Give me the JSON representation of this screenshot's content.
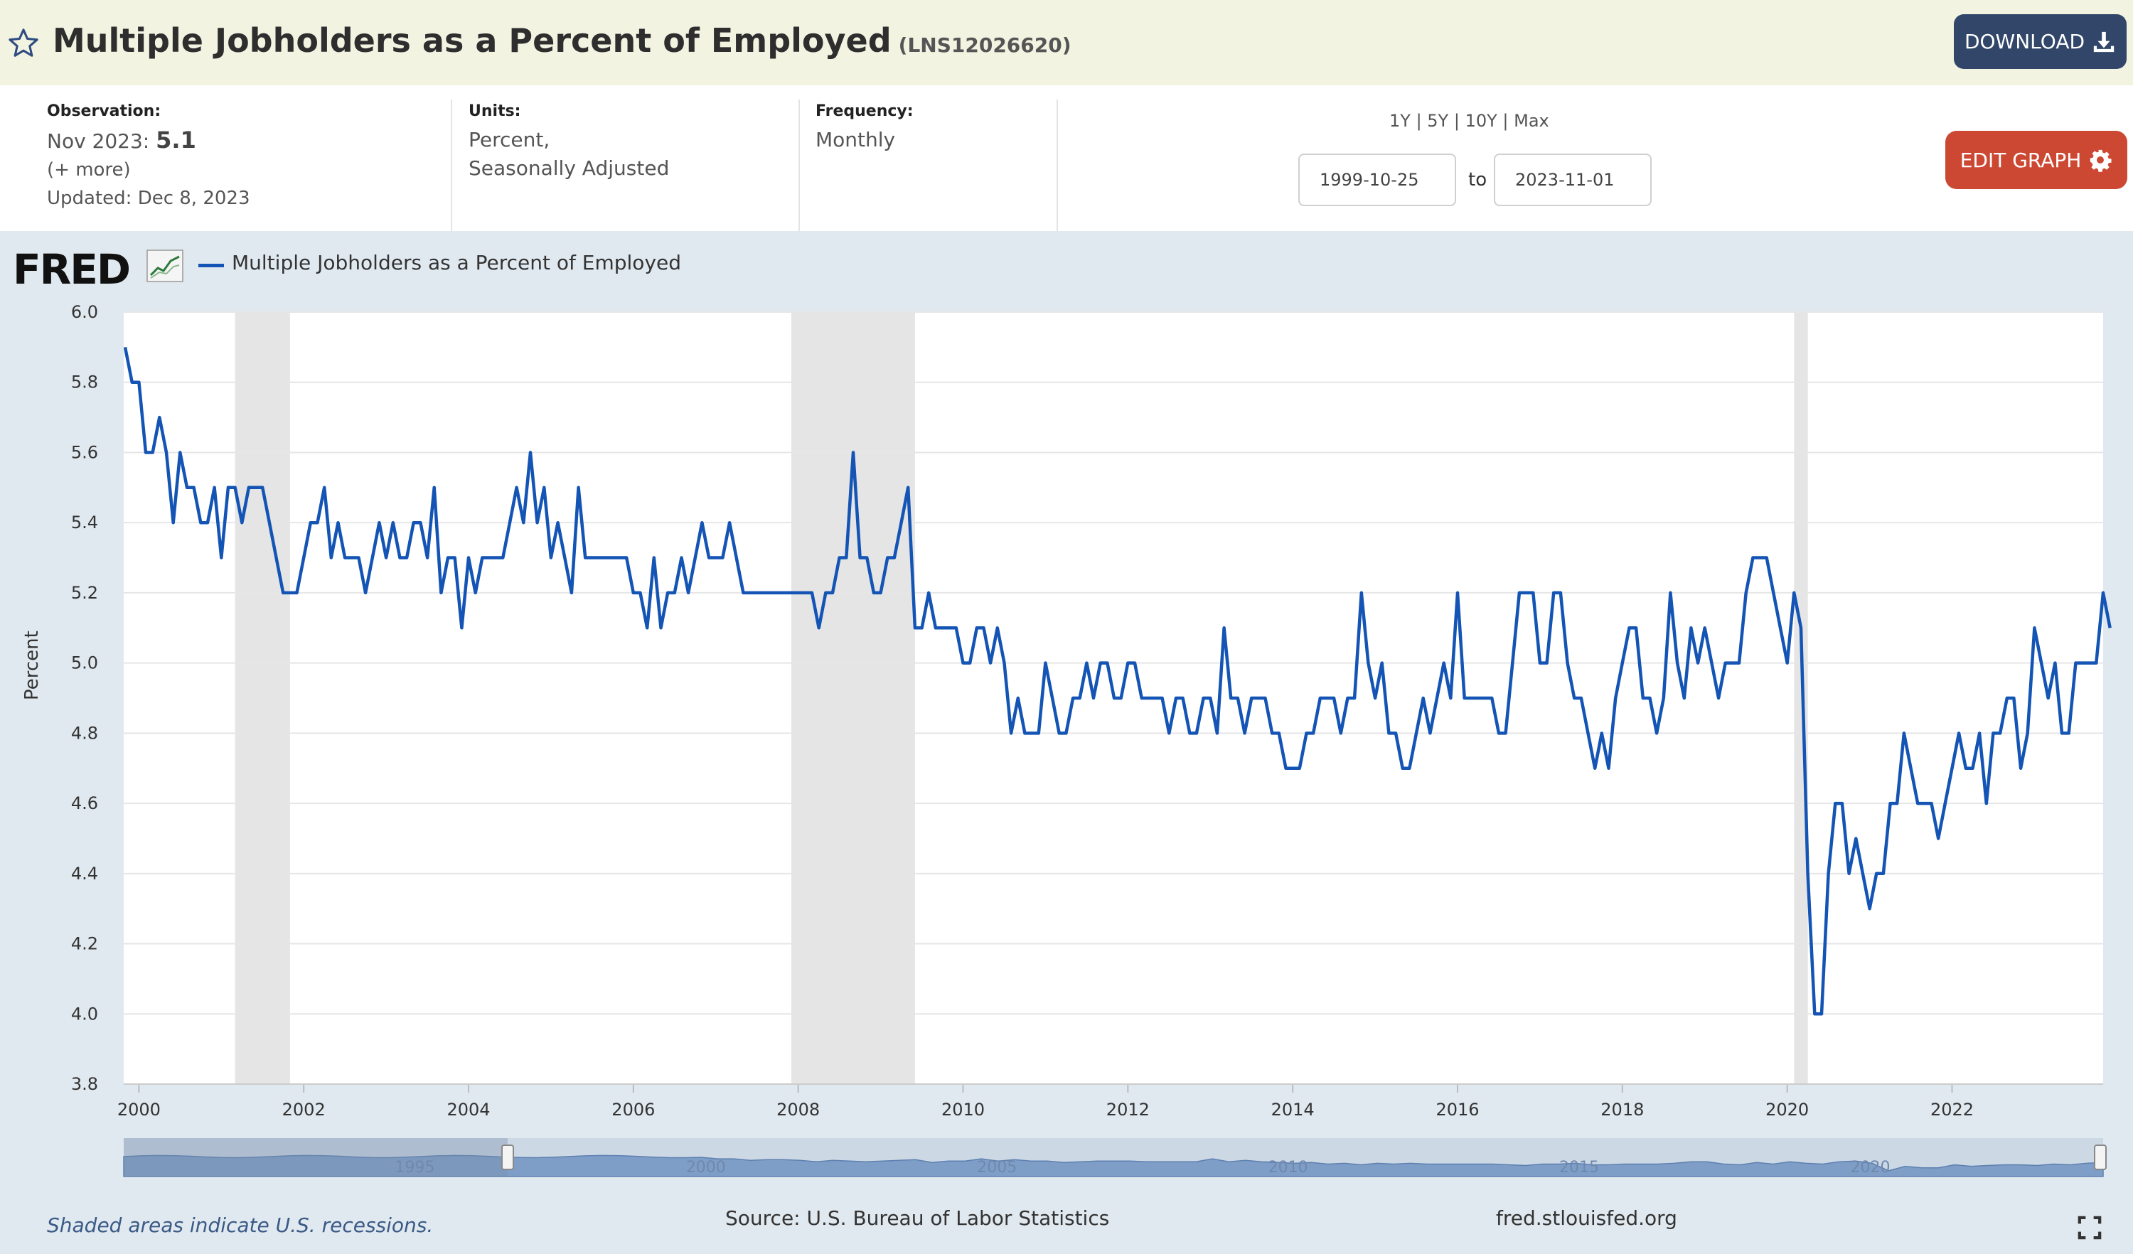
{
  "header": {
    "title": "Multiple Jobholders as a Percent of Employed",
    "series_id": "(LNS12026620)",
    "download_label": "DOWNLOAD"
  },
  "meta": {
    "observation_label": "Observation:",
    "observation_date": "Nov 2023:",
    "observation_value": "5.1",
    "more": "(+ more)",
    "updated": "Updated: Dec 8, 2023",
    "units_label": "Units:",
    "units_line1": "Percent,",
    "units_line2": "Seasonally Adjusted",
    "frequency_label": "Frequency:",
    "frequency_value": "Monthly"
  },
  "range": {
    "links": [
      "1Y",
      "5Y",
      "10Y",
      "Max"
    ],
    "start": "1999-10-25",
    "to": "to",
    "end": "2023-11-01",
    "edit_label": "EDIT GRAPH"
  },
  "footer": {
    "recession_note": "Shaded areas indicate U.S. recessions.",
    "source": "Source: U.S. Bureau of Labor Statistics",
    "site": "fred.stlouisfed.org"
  },
  "colors": {
    "series": "#1354b5",
    "recession": "#e5e5e5",
    "header_bg": "#f2f3e1",
    "download_bg": "#314669",
    "edit_bg": "#cc4832",
    "chart_bg": "#e1e9f0"
  },
  "chart_data": {
    "type": "line",
    "logo": "FRED",
    "xlabel": "",
    "ylabel": "Percent",
    "ylim": [
      3.8,
      6.0
    ],
    "xlim": [
      "1999-10",
      "2023-11"
    ],
    "yticks": [
      "3.8",
      "4.0",
      "4.2",
      "4.4",
      "4.6",
      "4.8",
      "5.0",
      "5.2",
      "5.4",
      "5.6",
      "5.8",
      "6.0"
    ],
    "xticks": [
      "2000",
      "2002",
      "2004",
      "2006",
      "2008",
      "2010",
      "2012",
      "2014",
      "2016",
      "2018",
      "2020",
      "2022"
    ],
    "navigator_labels": [
      "1995",
      "2000",
      "2005",
      "2010",
      "2015",
      "2020"
    ],
    "grid": true,
    "recessions": [
      [
        "2001-03",
        "2001-11"
      ],
      [
        "2007-12",
        "2009-06"
      ],
      [
        "2020-02",
        "2020-04"
      ]
    ],
    "series": [
      {
        "name": "Multiple Jobholders as a Percent of Employed",
        "start": "1999-11",
        "frequency": "monthly",
        "values": [
          5.9,
          5.8,
          5.8,
          5.6,
          5.6,
          5.7,
          5.6,
          5.4,
          5.6,
          5.5,
          5.5,
          5.4,
          5.4,
          5.5,
          5.3,
          5.5,
          5.5,
          5.4,
          5.5,
          5.5,
          5.5,
          5.4,
          5.3,
          5.2,
          5.2,
          5.2,
          5.3,
          5.4,
          5.4,
          5.5,
          5.3,
          5.4,
          5.3,
          5.3,
          5.3,
          5.2,
          5.3,
          5.4,
          5.3,
          5.4,
          5.3,
          5.3,
          5.4,
          5.4,
          5.3,
          5.5,
          5.2,
          5.3,
          5.3,
          5.1,
          5.3,
          5.2,
          5.3,
          5.3,
          5.3,
          5.3,
          5.4,
          5.5,
          5.4,
          5.6,
          5.4,
          5.5,
          5.3,
          5.4,
          5.3,
          5.2,
          5.5,
          5.3,
          5.3,
          5.3,
          5.3,
          5.3,
          5.3,
          5.3,
          5.2,
          5.2,
          5.1,
          5.3,
          5.1,
          5.2,
          5.2,
          5.3,
          5.2,
          5.3,
          5.4,
          5.3,
          5.3,
          5.3,
          5.4,
          5.3,
          5.2,
          5.2,
          5.2,
          5.2,
          5.2,
          5.2,
          5.2,
          5.2,
          5.2,
          5.2,
          5.2,
          5.1,
          5.2,
          5.2,
          5.3,
          5.3,
          5.6,
          5.3,
          5.3,
          5.2,
          5.2,
          5.3,
          5.3,
          5.4,
          5.5,
          5.1,
          5.1,
          5.2,
          5.1,
          5.1,
          5.1,
          5.1,
          5.0,
          5.0,
          5.1,
          5.1,
          5.0,
          5.1,
          5.0,
          4.8,
          4.9,
          4.8,
          4.8,
          4.8,
          5.0,
          4.9,
          4.8,
          4.8,
          4.9,
          4.9,
          5.0,
          4.9,
          5.0,
          5.0,
          4.9,
          4.9,
          5.0,
          5.0,
          4.9,
          4.9,
          4.9,
          4.9,
          4.8,
          4.9,
          4.9,
          4.8,
          4.8,
          4.9,
          4.9,
          4.8,
          5.1,
          4.9,
          4.9,
          4.8,
          4.9,
          4.9,
          4.9,
          4.8,
          4.8,
          4.7,
          4.7,
          4.7,
          4.8,
          4.8,
          4.9,
          4.9,
          4.9,
          4.8,
          4.9,
          4.9,
          5.2,
          5.0,
          4.9,
          5.0,
          4.8,
          4.8,
          4.7,
          4.7,
          4.8,
          4.9,
          4.8,
          4.9,
          5.0,
          4.9,
          5.2,
          4.9,
          4.9,
          4.9,
          4.9,
          4.9,
          4.8,
          4.8,
          5.0,
          5.2,
          5.2,
          5.2,
          5.0,
          5.0,
          5.2,
          5.2,
          5.0,
          4.9,
          4.9,
          4.8,
          4.7,
          4.8,
          4.7,
          4.9,
          5.0,
          5.1,
          5.1,
          4.9,
          4.9,
          4.8,
          4.9,
          5.2,
          5.0,
          4.9,
          5.1,
          5.0,
          5.1,
          5.0,
          4.9,
          5.0,
          5.0,
          5.0,
          5.2,
          5.3,
          5.3,
          5.3,
          5.2,
          5.1,
          5.0,
          5.2,
          5.1,
          4.4,
          4.0,
          4.0,
          4.4,
          4.6,
          4.6,
          4.4,
          4.5,
          4.4,
          4.3,
          4.4,
          4.4,
          4.6,
          4.6,
          4.8,
          4.7,
          4.6,
          4.6,
          4.6,
          4.5,
          4.6,
          4.7,
          4.8,
          4.7,
          4.7,
          4.8,
          4.6,
          4.8,
          4.8,
          4.9,
          4.9,
          4.7,
          4.8,
          5.1,
          5.0,
          4.9,
          5.0,
          4.8,
          4.8,
          5.0,
          5.0,
          5.0,
          5.0,
          5.2,
          5.1
        ]
      }
    ]
  }
}
